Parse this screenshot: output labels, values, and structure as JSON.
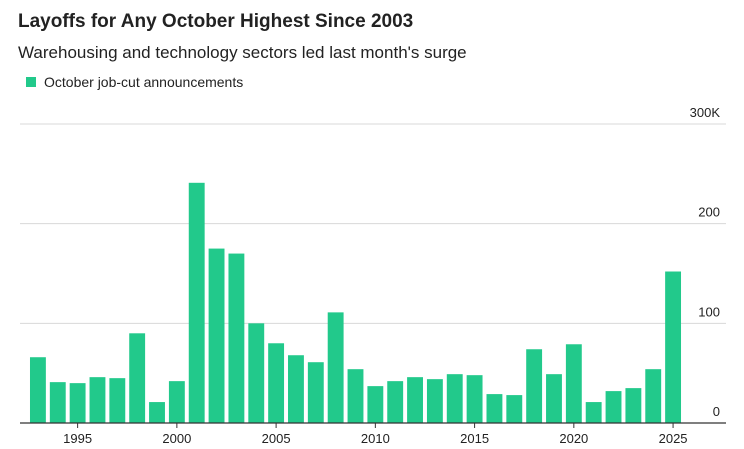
{
  "chart_data": {
    "type": "bar",
    "title": "Layoffs for Any October Highest Since 2003",
    "subtitle": "Warehousing and technology sectors led last month's surge",
    "series": [
      {
        "name": "October job-cut announcements",
        "color": "#22c98b",
        "values": [
          66,
          41,
          40,
          46,
          45,
          90,
          21,
          42,
          241,
          175,
          170,
          100,
          80,
          68,
          61,
          111,
          54,
          37,
          42,
          46,
          44,
          49,
          48,
          29,
          28,
          74,
          49,
          79,
          21,
          32,
          35,
          54,
          152
        ]
      }
    ],
    "x": [
      1993,
      1994,
      1995,
      1996,
      1997,
      1998,
      1999,
      2000,
      2001,
      2002,
      2003,
      2004,
      2005,
      2006,
      2007,
      2008,
      2009,
      2010,
      2011,
      2012,
      2013,
      2014,
      2015,
      2016,
      2017,
      2018,
      2019,
      2020,
      2021,
      2022,
      2023,
      2024,
      2025
    ],
    "xlim": [
      1992.5,
      2025.5
    ],
    "xticks": [
      1995,
      2000,
      2005,
      2010,
      2015,
      2020,
      2025
    ],
    "ylim": [
      0,
      300
    ],
    "yticks": [
      0,
      100,
      200,
      {
        "value": 300,
        "label": "300K"
      }
    ],
    "grid": true
  }
}
